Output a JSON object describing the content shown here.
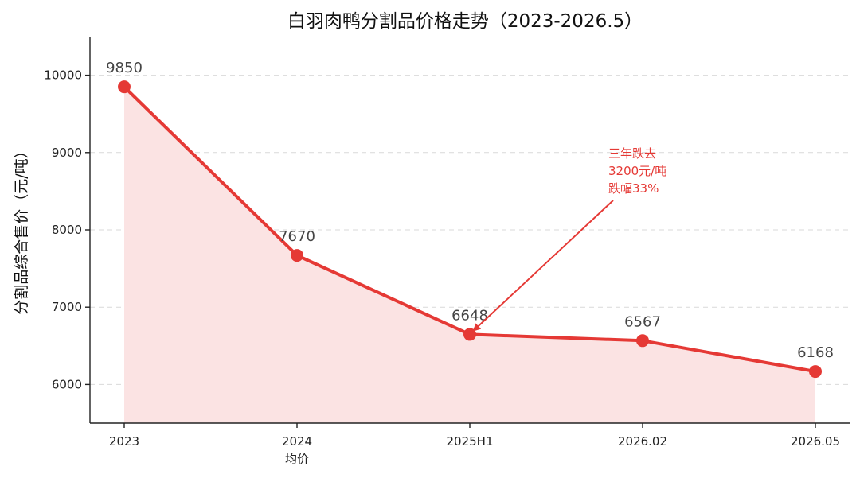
{
  "colors": {
    "line": "#e53935",
    "fill": "#fbe3e3",
    "annotation": "#e53935"
  },
  "chart_data": {
    "type": "line",
    "title": "白羽肉鸭分割品价格走势（2023-2026.5）",
    "xlabel": "",
    "ylabel": "分割品综合售价（元/吨）",
    "categories": [
      "2023",
      "2024",
      "2025H1",
      "2026.02",
      "2026.05"
    ],
    "category_sublabels": [
      "",
      "均价",
      "",
      "",
      ""
    ],
    "values": [
      9850,
      7670,
      6648,
      6567,
      6168
    ],
    "data_labels": [
      "9850",
      "7670",
      "6648",
      "6567",
      "6168"
    ],
    "ylim": [
      5500,
      10500
    ],
    "yticks": [
      6000,
      7000,
      8000,
      9000,
      10000
    ],
    "grid": "y-dashed",
    "area_fill": true,
    "annotation": {
      "lines": [
        "三年跌去",
        "3200元/吨",
        "跌幅33%"
      ],
      "arrow_target_category": "2025H1",
      "arrow_target_value": 6648
    }
  }
}
